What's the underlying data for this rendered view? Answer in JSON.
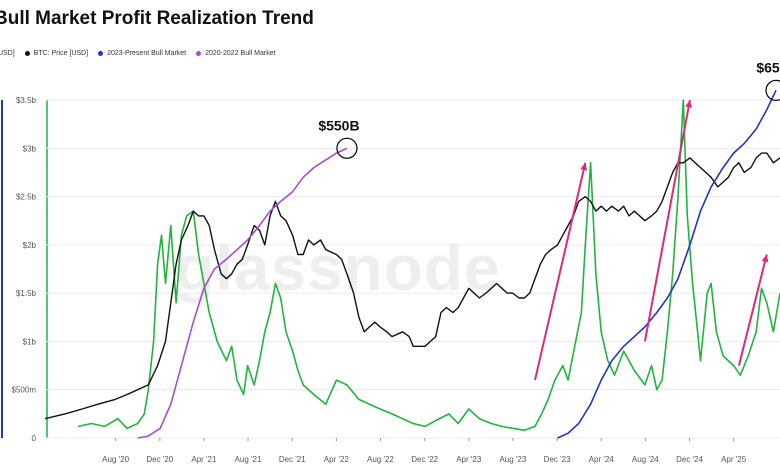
{
  "chart_data": {
    "type": "line",
    "title": "Bull Market Profit Realization Trend",
    "legend_items": [
      {
        "label": "[USD]",
        "color": "#1fb53b"
      },
      {
        "label": "BTC: Price [USD]",
        "color": "#111111"
      },
      {
        "label": "2023-Present Bull Market",
        "color": "#2233cc"
      },
      {
        "label": "2020-2022 Bull Market",
        "color": "#a64bd6"
      }
    ],
    "y_ticks": [
      "0",
      "$500m",
      "$1b",
      "$1.5b",
      "$2b",
      "$2.5b",
      "$3b",
      "$3.5b"
    ],
    "y_values": [
      0,
      0.5,
      1.0,
      1.5,
      2.0,
      2.5,
      3.0,
      3.5
    ],
    "ylim": [
      0,
      3.5
    ],
    "x_ticks": [
      "Aug '20",
      "Dec '20",
      "Apr '21",
      "Aug '21",
      "Dec '21",
      "Apr '22",
      "Aug '22",
      "Dec '22",
      "Apr '23",
      "Aug '23",
      "Dec '23",
      "Apr '24",
      "Aug '24",
      "Dec '24",
      "Apr '25"
    ],
    "x_tick_years": [
      2020.583,
      2020.917,
      2021.25,
      2021.583,
      2021.917,
      2022.25,
      2022.583,
      2022.917,
      2023.25,
      2023.583,
      2023.917,
      2024.25,
      2024.583,
      2024.917,
      2025.25
    ],
    "xlim": [
      2020.05,
      2025.6
    ],
    "watermark": "glassnode",
    "annotations": [
      {
        "label": "$550B",
        "x": 2022.33,
        "y": 3.0
      },
      {
        "label": "$65",
        "x": 2025.57,
        "y": 3.6
      }
    ],
    "series": [
      {
        "name": "[USD]",
        "color": "#1fb53b",
        "points": [
          [
            2020.3,
            0.12
          ],
          [
            2020.4,
            0.15
          ],
          [
            2020.5,
            0.12
          ],
          [
            2020.6,
            0.2
          ],
          [
            2020.67,
            0.1
          ],
          [
            2020.75,
            0.15
          ],
          [
            2020.8,
            0.25
          ],
          [
            2020.83,
            0.5
          ],
          [
            2020.87,
            1.0
          ],
          [
            2020.9,
            1.8
          ],
          [
            2020.93,
            2.1
          ],
          [
            2020.96,
            1.6
          ],
          [
            2021.0,
            2.2
          ],
          [
            2021.04,
            1.4
          ],
          [
            2021.08,
            2.1
          ],
          [
            2021.12,
            2.3
          ],
          [
            2021.17,
            2.35
          ],
          [
            2021.21,
            1.9
          ],
          [
            2021.25,
            1.6
          ],
          [
            2021.29,
            1.3
          ],
          [
            2021.35,
            1.0
          ],
          [
            2021.42,
            0.8
          ],
          [
            2021.46,
            0.95
          ],
          [
            2021.5,
            0.6
          ],
          [
            2021.55,
            0.45
          ],
          [
            2021.58,
            0.75
          ],
          [
            2021.63,
            0.55
          ],
          [
            2021.67,
            0.8
          ],
          [
            2021.71,
            1.1
          ],
          [
            2021.75,
            1.3
          ],
          [
            2021.79,
            1.6
          ],
          [
            2021.83,
            1.45
          ],
          [
            2021.87,
            1.1
          ],
          [
            2021.92,
            0.9
          ],
          [
            2021.96,
            0.7
          ],
          [
            2022.0,
            0.55
          ],
          [
            2022.08,
            0.45
          ],
          [
            2022.17,
            0.35
          ],
          [
            2022.25,
            0.6
          ],
          [
            2022.33,
            0.55
          ],
          [
            2022.42,
            0.4
          ],
          [
            2022.5,
            0.35
          ],
          [
            2022.58,
            0.3
          ],
          [
            2022.67,
            0.25
          ],
          [
            2022.75,
            0.2
          ],
          [
            2022.83,
            0.15
          ],
          [
            2022.92,
            0.12
          ],
          [
            2023.0,
            0.18
          ],
          [
            2023.1,
            0.25
          ],
          [
            2023.17,
            0.15
          ],
          [
            2023.25,
            0.3
          ],
          [
            2023.33,
            0.2
          ],
          [
            2023.42,
            0.15
          ],
          [
            2023.5,
            0.12
          ],
          [
            2023.58,
            0.1
          ],
          [
            2023.67,
            0.08
          ],
          [
            2023.75,
            0.12
          ],
          [
            2023.8,
            0.25
          ],
          [
            2023.85,
            0.4
          ],
          [
            2023.9,
            0.6
          ],
          [
            2023.96,
            0.75
          ],
          [
            2024.0,
            0.6
          ],
          [
            2024.05,
            0.95
          ],
          [
            2024.1,
            1.3
          ],
          [
            2024.13,
            2.0
          ],
          [
            2024.17,
            2.85
          ],
          [
            2024.21,
            1.7
          ],
          [
            2024.25,
            1.1
          ],
          [
            2024.3,
            0.8
          ],
          [
            2024.35,
            0.65
          ],
          [
            2024.42,
            0.9
          ],
          [
            2024.5,
            0.7
          ],
          [
            2024.58,
            0.55
          ],
          [
            2024.63,
            0.75
          ],
          [
            2024.67,
            0.5
          ],
          [
            2024.71,
            0.6
          ],
          [
            2024.75,
            1.1
          ],
          [
            2024.79,
            1.7
          ],
          [
            2024.83,
            2.5
          ],
          [
            2024.87,
            3.5
          ],
          [
            2024.9,
            2.3
          ],
          [
            2024.94,
            1.6
          ],
          [
            2024.97,
            1.2
          ],
          [
            2025.0,
            0.8
          ],
          [
            2025.05,
            1.5
          ],
          [
            2025.08,
            1.6
          ],
          [
            2025.12,
            1.1
          ],
          [
            2025.17,
            0.85
          ],
          [
            2025.25,
            0.75
          ],
          [
            2025.3,
            0.65
          ],
          [
            2025.36,
            0.85
          ],
          [
            2025.42,
            1.1
          ],
          [
            2025.46,
            1.55
          ],
          [
            2025.5,
            1.4
          ],
          [
            2025.55,
            1.1
          ],
          [
            2025.6,
            1.5
          ]
        ]
      },
      {
        "name": "BTC: Price [USD]",
        "color": "#111111",
        "points": [
          [
            2020.05,
            0.2
          ],
          [
            2020.2,
            0.25
          ],
          [
            2020.33,
            0.3
          ],
          [
            2020.45,
            0.35
          ],
          [
            2020.58,
            0.4
          ],
          [
            2020.67,
            0.45
          ],
          [
            2020.75,
            0.5
          ],
          [
            2020.83,
            0.55
          ],
          [
            2020.9,
            0.75
          ],
          [
            2020.96,
            1.0
          ],
          [
            2021.0,
            1.4
          ],
          [
            2021.04,
            1.8
          ],
          [
            2021.08,
            2.05
          ],
          [
            2021.13,
            2.2
          ],
          [
            2021.17,
            2.35
          ],
          [
            2021.21,
            2.3
          ],
          [
            2021.25,
            2.3
          ],
          [
            2021.29,
            2.2
          ],
          [
            2021.33,
            1.95
          ],
          [
            2021.38,
            1.7
          ],
          [
            2021.42,
            1.65
          ],
          [
            2021.46,
            1.7
          ],
          [
            2021.5,
            1.8
          ],
          [
            2021.54,
            1.85
          ],
          [
            2021.58,
            2.0
          ],
          [
            2021.63,
            2.2
          ],
          [
            2021.67,
            2.15
          ],
          [
            2021.71,
            2.0
          ],
          [
            2021.75,
            2.3
          ],
          [
            2021.79,
            2.45
          ],
          [
            2021.83,
            2.3
          ],
          [
            2021.87,
            2.25
          ],
          [
            2021.92,
            2.1
          ],
          [
            2021.96,
            1.9
          ],
          [
            2022.0,
            1.9
          ],
          [
            2022.04,
            2.05
          ],
          [
            2022.08,
            2.0
          ],
          [
            2022.13,
            2.05
          ],
          [
            2022.17,
            1.95
          ],
          [
            2022.25,
            1.9
          ],
          [
            2022.29,
            1.85
          ],
          [
            2022.33,
            1.7
          ],
          [
            2022.38,
            1.5
          ],
          [
            2022.42,
            1.25
          ],
          [
            2022.46,
            1.1
          ],
          [
            2022.5,
            1.15
          ],
          [
            2022.54,
            1.2
          ],
          [
            2022.58,
            1.15
          ],
          [
            2022.63,
            1.1
          ],
          [
            2022.67,
            1.05
          ],
          [
            2022.75,
            1.1
          ],
          [
            2022.8,
            1.05
          ],
          [
            2022.83,
            0.95
          ],
          [
            2022.87,
            0.95
          ],
          [
            2022.92,
            0.95
          ],
          [
            2022.96,
            1.0
          ],
          [
            2023.0,
            1.05
          ],
          [
            2023.04,
            1.3
          ],
          [
            2023.08,
            1.35
          ],
          [
            2023.13,
            1.3
          ],
          [
            2023.17,
            1.35
          ],
          [
            2023.21,
            1.45
          ],
          [
            2023.25,
            1.55
          ],
          [
            2023.29,
            1.5
          ],
          [
            2023.33,
            1.45
          ],
          [
            2023.38,
            1.5
          ],
          [
            2023.42,
            1.55
          ],
          [
            2023.46,
            1.6
          ],
          [
            2023.5,
            1.55
          ],
          [
            2023.54,
            1.5
          ],
          [
            2023.58,
            1.5
          ],
          [
            2023.63,
            1.45
          ],
          [
            2023.67,
            1.45
          ],
          [
            2023.71,
            1.5
          ],
          [
            2023.75,
            1.65
          ],
          [
            2023.79,
            1.8
          ],
          [
            2023.83,
            1.9
          ],
          [
            2023.87,
            1.95
          ],
          [
            2023.92,
            2.0
          ],
          [
            2023.96,
            2.1
          ],
          [
            2024.0,
            2.2
          ],
          [
            2024.04,
            2.3
          ],
          [
            2024.08,
            2.45
          ],
          [
            2024.13,
            2.5
          ],
          [
            2024.17,
            2.45
          ],
          [
            2024.21,
            2.35
          ],
          [
            2024.25,
            2.4
          ],
          [
            2024.29,
            2.35
          ],
          [
            2024.33,
            2.4
          ],
          [
            2024.38,
            2.35
          ],
          [
            2024.42,
            2.4
          ],
          [
            2024.46,
            2.3
          ],
          [
            2024.5,
            2.35
          ],
          [
            2024.54,
            2.3
          ],
          [
            2024.58,
            2.25
          ],
          [
            2024.63,
            2.3
          ],
          [
            2024.67,
            2.35
          ],
          [
            2024.71,
            2.45
          ],
          [
            2024.75,
            2.6
          ],
          [
            2024.79,
            2.75
          ],
          [
            2024.83,
            2.85
          ],
          [
            2024.87,
            2.85
          ],
          [
            2024.92,
            2.9
          ],
          [
            2024.96,
            2.85
          ],
          [
            2025.0,
            2.8
          ],
          [
            2025.04,
            2.75
          ],
          [
            2025.08,
            2.7
          ],
          [
            2025.13,
            2.6
          ],
          [
            2025.17,
            2.65
          ],
          [
            2025.21,
            2.7
          ],
          [
            2025.25,
            2.8
          ],
          [
            2025.29,
            2.85
          ],
          [
            2025.33,
            2.75
          ],
          [
            2025.38,
            2.8
          ],
          [
            2025.42,
            2.9
          ],
          [
            2025.46,
            2.95
          ],
          [
            2025.5,
            2.95
          ],
          [
            2025.55,
            2.85
          ],
          [
            2025.6,
            2.9
          ]
        ]
      },
      {
        "name": "2023-Present Bull Market",
        "color": "#2233cc",
        "points": [
          [
            2023.92,
            0.0
          ],
          [
            2024.0,
            0.05
          ],
          [
            2024.08,
            0.15
          ],
          [
            2024.17,
            0.35
          ],
          [
            2024.25,
            0.6
          ],
          [
            2024.33,
            0.8
          ],
          [
            2024.42,
            0.95
          ],
          [
            2024.5,
            1.05
          ],
          [
            2024.58,
            1.15
          ],
          [
            2024.67,
            1.3
          ],
          [
            2024.75,
            1.45
          ],
          [
            2024.83,
            1.65
          ],
          [
            2024.92,
            2.0
          ],
          [
            2025.0,
            2.35
          ],
          [
            2025.08,
            2.6
          ],
          [
            2025.17,
            2.8
          ],
          [
            2025.25,
            2.95
          ],
          [
            2025.33,
            3.05
          ],
          [
            2025.42,
            3.2
          ],
          [
            2025.5,
            3.4
          ],
          [
            2025.57,
            3.6
          ]
        ]
      },
      {
        "name": "2020-2022 Bull Market",
        "color": "#a64bd6",
        "points": [
          [
            2020.75,
            0.0
          ],
          [
            2020.83,
            0.02
          ],
          [
            2020.92,
            0.1
          ],
          [
            2021.0,
            0.35
          ],
          [
            2021.08,
            0.75
          ],
          [
            2021.17,
            1.2
          ],
          [
            2021.25,
            1.55
          ],
          [
            2021.33,
            1.75
          ],
          [
            2021.42,
            1.85
          ],
          [
            2021.5,
            1.95
          ],
          [
            2021.58,
            2.05
          ],
          [
            2021.67,
            2.2
          ],
          [
            2021.75,
            2.35
          ],
          [
            2021.83,
            2.45
          ],
          [
            2021.92,
            2.55
          ],
          [
            2022.0,
            2.7
          ],
          [
            2022.08,
            2.8
          ],
          [
            2022.17,
            2.88
          ],
          [
            2022.25,
            2.95
          ],
          [
            2022.33,
            3.0
          ]
        ]
      }
    ],
    "arrows": [
      {
        "from": [
          2023.75,
          0.6
        ],
        "to": [
          2024.13,
          2.85
        ]
      },
      {
        "from": [
          2024.58,
          1.0
        ],
        "to": [
          2024.92,
          3.5
        ]
      },
      {
        "from": [
          2025.29,
          0.75
        ],
        "to": [
          2025.5,
          1.9
        ]
      }
    ]
  }
}
